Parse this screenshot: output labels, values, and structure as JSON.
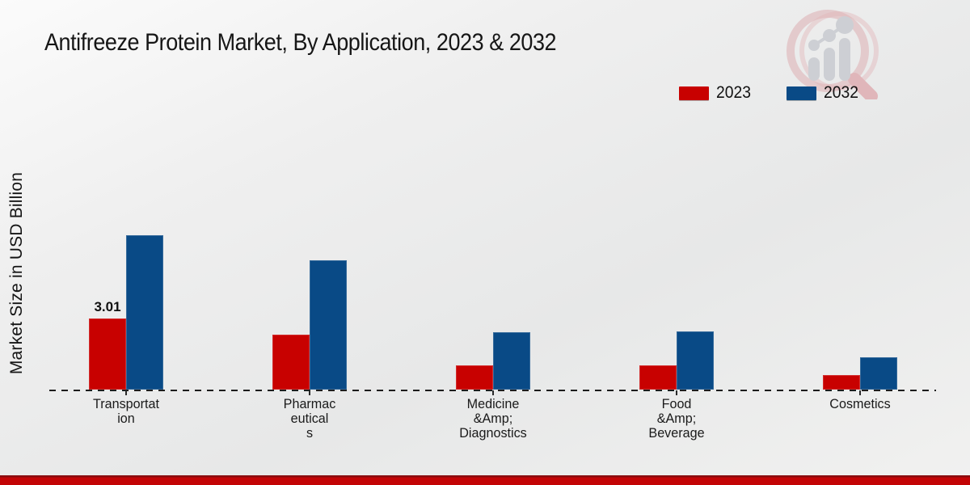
{
  "page": {
    "title": "Antifreeze Protein Market, By Application, 2023 & 2032"
  },
  "y_axis": {
    "label": "Market Size in USD Billion"
  },
  "legend": {
    "items": [
      {
        "label": "2023",
        "color": "#c80100"
      },
      {
        "label": "2032",
        "color": "#094a86"
      }
    ]
  },
  "watermark": {
    "icon": "magnifier-bar-chart-logo",
    "ring_color": "#e2c5c7",
    "bars_color": "#c8cbd0"
  },
  "footer": {
    "accent_color": "#c30405"
  },
  "chart_data": {
    "type": "bar",
    "title": "Antifreeze Protein Market, By Application, 2023 & 2032",
    "ylabel": "Market Size in USD Billion",
    "xlabel": "",
    "categories": [
      "Transportation",
      "Pharmaceuticals",
      "Medicine &Amp; Diagnostics",
      "Food &Amp; Beverage",
      "Cosmetics"
    ],
    "category_label_lines": [
      [
        "Transportat",
        "ion"
      ],
      [
        "Pharmac",
        "eutical",
        "s"
      ],
      [
        "Medicine",
        "&Amp;",
        "Diagnostics"
      ],
      [
        "Food",
        "&Amp;",
        "Beverage"
      ],
      [
        "Cosmetics"
      ]
    ],
    "series": [
      {
        "name": "2023",
        "color": "#c80100",
        "values": [
          3.01,
          2.32,
          1.02,
          1.03,
          0.61
        ]
      },
      {
        "name": "2032",
        "color": "#094a86",
        "values": [
          6.53,
          5.47,
          2.43,
          2.46,
          1.37
        ]
      }
    ],
    "annotations": [
      {
        "text": "3.01",
        "series": "2023",
        "category": "Transportation",
        "category_index": 0
      }
    ],
    "ylim": [
      0,
      7
    ],
    "grid": false,
    "baseline_style": "dashed",
    "legend_position": "top-right"
  }
}
